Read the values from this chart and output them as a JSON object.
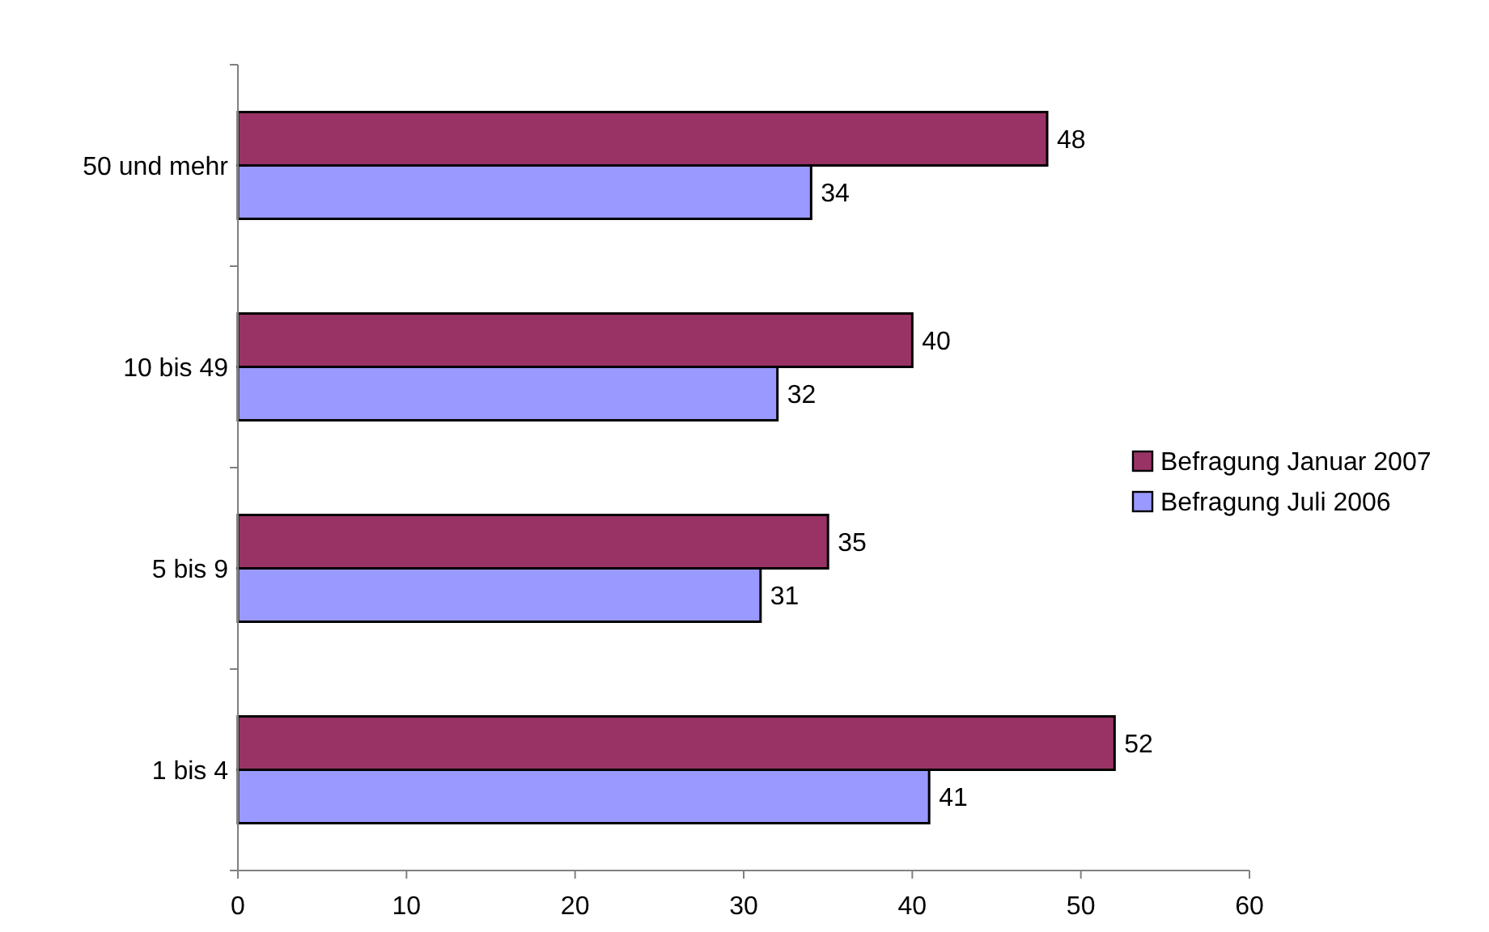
{
  "chart_data": {
    "type": "bar",
    "orientation": "horizontal",
    "categories": [
      "50 und mehr",
      "10 bis 49",
      "5 bis 9",
      "1 bis 4"
    ],
    "series": [
      {
        "name": "Befragung Januar 2007",
        "color": "#993366",
        "values": [
          48,
          40,
          35,
          52
        ]
      },
      {
        "name": "Befragung Juli 2006",
        "color": "#9999ff",
        "values": [
          34,
          32,
          31,
          41
        ]
      }
    ],
    "xlim": [
      0,
      60
    ],
    "xticks": [
      0,
      10,
      20,
      30,
      40,
      50,
      60
    ],
    "data_labels": true,
    "legend": "right",
    "grid": false
  }
}
